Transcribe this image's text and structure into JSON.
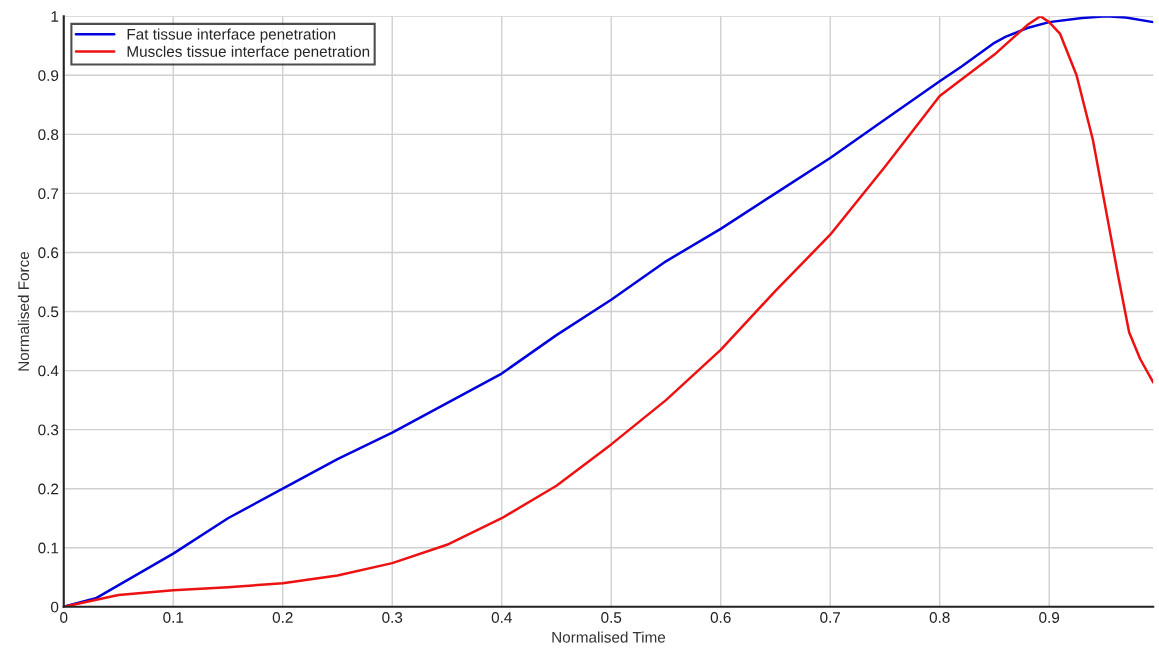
{
  "chart_data": {
    "type": "line",
    "xlabel": "Normalised Time",
    "ylabel": "Normalised Force",
    "xlim": [
      0,
      0.995
    ],
    "ylim": [
      0,
      1
    ],
    "xticks": [
      0,
      0.1,
      0.2,
      0.3,
      0.4,
      0.5,
      0.6,
      0.7,
      0.8,
      0.9
    ],
    "yticks": [
      0,
      0.1,
      0.2,
      0.3,
      0.4,
      0.5,
      0.6,
      0.7,
      0.8,
      0.9,
      1
    ],
    "grid": true,
    "legend": "top left",
    "line_style": "solid",
    "marker": "none",
    "series": [
      {
        "name": "Fat tissue interface penetration",
        "color": "#0000dd",
        "x": [
          0,
          0.03,
          0.1,
          0.15,
          0.2,
          0.25,
          0.3,
          0.35,
          0.4,
          0.45,
          0.5,
          0.55,
          0.6,
          0.65,
          0.7,
          0.75,
          0.8,
          0.82,
          0.85,
          0.86,
          0.88,
          0.9,
          0.93,
          0.952,
          0.97,
          0.995
        ],
        "values": [
          0,
          0.015,
          0.09,
          0.15,
          0.2,
          0.25,
          0.295,
          0.345,
          0.395,
          0.46,
          0.52,
          0.585,
          0.64,
          0.7,
          0.76,
          0.825,
          0.89,
          0.915,
          0.955,
          0.965,
          0.98,
          0.99,
          0.997,
          1.0,
          0.998,
          0.99
        ]
      },
      {
        "name": "Muscles tissue interface penetration",
        "color": "#ee1111",
        "x": [
          0,
          0.05,
          0.1,
          0.15,
          0.2,
          0.25,
          0.3,
          0.35,
          0.4,
          0.45,
          0.5,
          0.55,
          0.6,
          0.65,
          0.7,
          0.75,
          0.8,
          0.85,
          0.88,
          0.892,
          0.9,
          0.91,
          0.925,
          0.94,
          0.952,
          0.963,
          0.973,
          0.983,
          0.995
        ],
        "values": [
          0,
          0.02,
          0.028,
          0.033,
          0.04,
          0.053,
          0.074,
          0.105,
          0.15,
          0.205,
          0.275,
          0.35,
          0.435,
          0.535,
          0.63,
          0.745,
          0.865,
          0.935,
          0.985,
          1.0,
          0.99,
          0.97,
          0.9,
          0.79,
          0.67,
          0.56,
          0.465,
          0.42,
          0.38
        ]
      }
    ]
  }
}
